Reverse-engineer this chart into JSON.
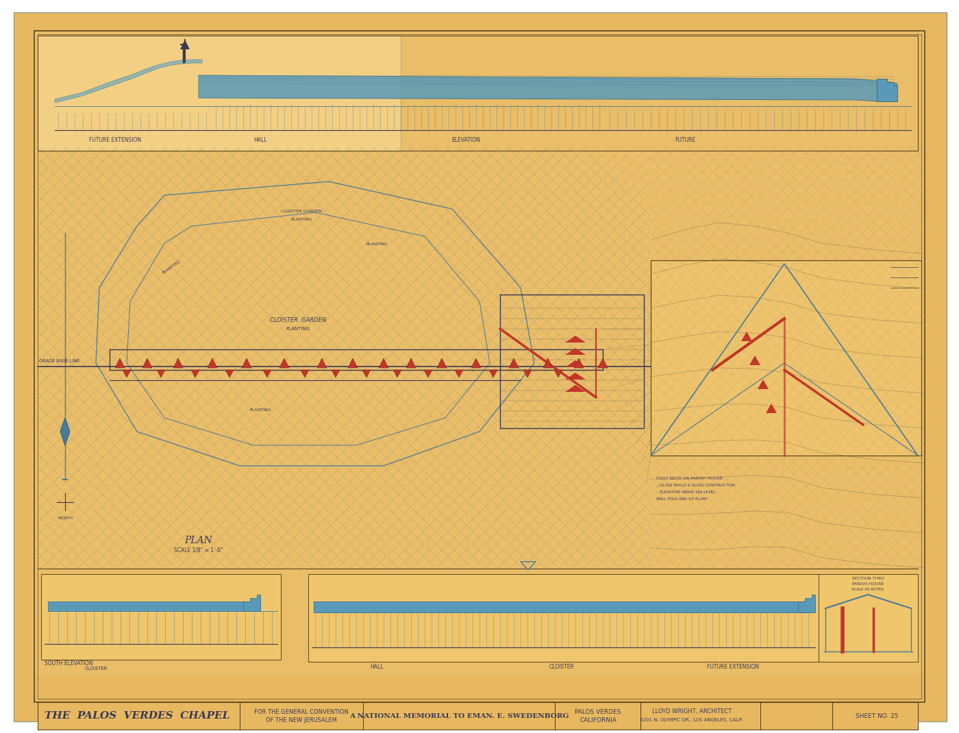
{
  "bg_outer": "#C8A040",
  "bg_paper": "#E8B860",
  "bg_light": "#F0C878",
  "bg_flap": "#F5D898",
  "border_color": "#5a4520",
  "line_blue": "#4a7a9a",
  "line_dark": "#3a3a55",
  "line_red": "#c03828",
  "line_brown": "#7a6040",
  "title_text1": "THE PALOS VERDES  CHAPEL",
  "title_text2": "FOR THE GENERAL CONVENTION\nOF THE NEW JERUSALEM",
  "title_text3": "A NATIONAL MEMORIAL TO EMAN. E. SWEDENBORG",
  "title_loc": "PALOS VERDES\nCALIFORNIA",
  "title_arch": "LLOYD WRIGHT, ARCHITECT\n3201 N. OLYMPIC DR., LOS ANGELES, CALIF.",
  "title_sheet": "SHEET NO. 25",
  "plan_label": "PLAN",
  "plan_scale": "SCALE 1/8\" = 1'-0\"",
  "south_elev_label": "SOUTH ELEVATION",
  "grade_base_label": "GRADE BASE LINE",
  "note_future_ext": "FUTURE EXTENSION",
  "note_hall": "HALL",
  "note_cloister": "CLOISTER",
  "note_future": "FUTURE EXTENSION"
}
